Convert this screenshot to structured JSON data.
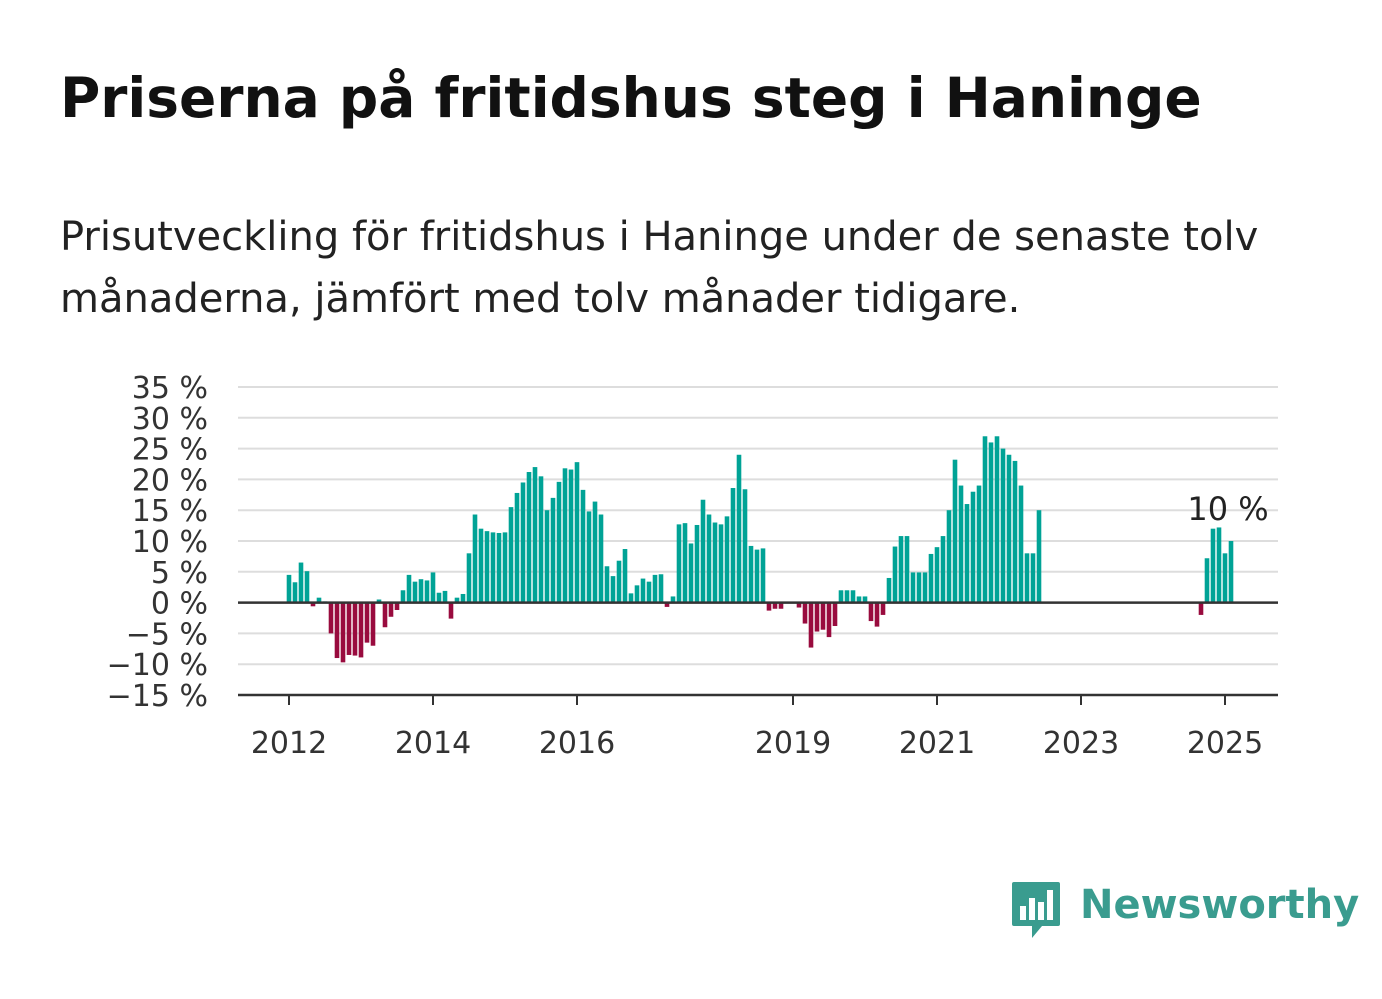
{
  "title": "Priserna på fritidshus steg i Haninge",
  "subtitle": "Prisutveckling för fritidshus i Haninge under de senaste tolv månaderna, jämfört med tolv månader tidigare.",
  "brand": {
    "name": "Newsworthy",
    "color": "#3a9c8f",
    "icon": "bar-chart-speech-bubble-icon"
  },
  "colors": {
    "positive": "#00a396",
    "negative": "#990b3e",
    "grid": "#dddddd",
    "axis": "#333333"
  },
  "chart_data": {
    "type": "bar",
    "x_axis": "time (monthly)",
    "ylim": [
      -15,
      35
    ],
    "yticks": [
      -15,
      -10,
      -5,
      0,
      5,
      10,
      15,
      20,
      25,
      30,
      35
    ],
    "ytick_labels": [
      "−15 %",
      "−10 %",
      "−5 %",
      "0 %",
      "5 %",
      "10 %",
      "15 %",
      "20 %",
      "25 %",
      "30 %",
      "35 %"
    ],
    "xticks": [
      "2012",
      "2014",
      "2016",
      "2019",
      "2021",
      "2023",
      "2025"
    ],
    "grid": true,
    "annotation": "10 %",
    "series": [
      {
        "values": [
          [
            "2012-01",
            4.5
          ],
          [
            "2012-02",
            3.3
          ],
          [
            "2012-03",
            6.5
          ],
          [
            "2012-04",
            5.1
          ],
          [
            "2012-05",
            -0.6
          ],
          [
            "2012-06",
            0.8
          ],
          [
            "2012-07",
            0.2
          ],
          [
            "2012-08",
            -5.0
          ],
          [
            "2012-09",
            -9.0
          ],
          [
            "2012-10",
            -9.7
          ],
          [
            "2012-11",
            -8.5
          ],
          [
            "2012-12",
            -8.6
          ],
          [
            "2013-01",
            -8.9
          ],
          [
            "2013-02",
            -6.5
          ],
          [
            "2013-03",
            -7.0
          ],
          [
            "2013-04",
            0.5
          ],
          [
            "2013-05",
            -4.0
          ],
          [
            "2013-06",
            -2.3
          ],
          [
            "2013-07",
            -1.2
          ],
          [
            "2013-08",
            2.0
          ],
          [
            "2013-09",
            4.5
          ],
          [
            "2013-10",
            3.4
          ],
          [
            "2013-11",
            3.8
          ],
          [
            "2013-12",
            3.6
          ],
          [
            "2014-01",
            4.9
          ],
          [
            "2014-02",
            1.6
          ],
          [
            "2014-03",
            1.9
          ],
          [
            "2014-04",
            -2.6
          ],
          [
            "2014-05",
            0.8
          ],
          [
            "2014-06",
            1.4
          ],
          [
            "2014-07",
            8.0
          ],
          [
            "2014-08",
            14.3
          ],
          [
            "2014-09",
            12.0
          ],
          [
            "2014-10",
            11.6
          ],
          [
            "2014-11",
            11.4
          ],
          [
            "2014-12",
            11.3
          ],
          [
            "2015-01",
            11.4
          ],
          [
            "2015-02",
            15.5
          ],
          [
            "2015-03",
            17.8
          ],
          [
            "2015-04",
            19.5
          ],
          [
            "2015-05",
            21.2
          ],
          [
            "2015-06",
            22.0
          ],
          [
            "2015-07",
            20.5
          ],
          [
            "2015-08",
            15.0
          ],
          [
            "2015-09",
            17.0
          ],
          [
            "2015-10",
            19.6
          ],
          [
            "2015-11",
            21.8
          ],
          [
            "2015-12",
            21.6
          ],
          [
            "2016-01",
            22.8
          ],
          [
            "2016-02",
            18.3
          ],
          [
            "2016-03",
            14.8
          ],
          [
            "2016-04",
            16.4
          ],
          [
            "2016-05",
            14.3
          ],
          [
            "2016-06",
            5.9
          ],
          [
            "2016-07",
            4.3
          ],
          [
            "2016-08",
            6.8
          ],
          [
            "2016-09",
            8.7
          ],
          [
            "2016-10",
            1.5
          ],
          [
            "2016-11",
            2.8
          ],
          [
            "2016-12",
            3.9
          ],
          [
            "2017-01",
            3.4
          ],
          [
            "2017-02",
            4.5
          ],
          [
            "2017-03",
            4.6
          ],
          [
            "2017-04",
            -0.7
          ],
          [
            "2017-05",
            1.0
          ],
          [
            "2017-06",
            12.7
          ],
          [
            "2017-07",
            12.9
          ],
          [
            "2017-08",
            9.6
          ],
          [
            "2017-09",
            12.6
          ],
          [
            "2017-10",
            16.7
          ],
          [
            "2017-11",
            14.3
          ],
          [
            "2017-12",
            13.0
          ],
          [
            "2018-01",
            12.7
          ],
          [
            "2018-02",
            14.0
          ],
          [
            "2018-03",
            18.6
          ],
          [
            "2018-04",
            24.0
          ],
          [
            "2018-05",
            18.4
          ],
          [
            "2018-06",
            9.2
          ],
          [
            "2018-07",
            8.6
          ],
          [
            "2018-08",
            8.8
          ],
          [
            "2018-09",
            -1.3
          ],
          [
            "2018-10",
            -1.0
          ],
          [
            "2018-11",
            -1.0
          ],
          [
            "2018-12",
            null
          ],
          [
            "2019-01",
            null
          ],
          [
            "2019-02",
            -0.8
          ],
          [
            "2019-03",
            -3.4
          ],
          [
            "2019-04",
            -7.3
          ],
          [
            "2019-05",
            -4.7
          ],
          [
            "2019-06",
            -4.4
          ],
          [
            "2019-07",
            -5.6
          ],
          [
            "2019-08",
            -3.8
          ],
          [
            "2019-09",
            2.0
          ],
          [
            "2019-10",
            2.0
          ],
          [
            "2019-11",
            2.0
          ],
          [
            "2019-12",
            1.0
          ],
          [
            "2020-01",
            1.0
          ],
          [
            "2020-02",
            -3.0
          ],
          [
            "2020-03",
            -3.9
          ],
          [
            "2020-04",
            -2.0
          ],
          [
            "2020-05",
            4.0
          ],
          [
            "2020-06",
            9.1
          ],
          [
            "2020-07",
            10.8
          ],
          [
            "2020-08",
            10.8
          ],
          [
            "2020-09",
            4.9
          ],
          [
            "2020-10",
            4.9
          ],
          [
            "2020-11",
            4.9
          ],
          [
            "2020-12",
            7.9
          ],
          [
            "2021-01",
            9.0
          ],
          [
            "2021-02",
            10.8
          ],
          [
            "2021-03",
            15.0
          ],
          [
            "2021-04",
            23.2
          ],
          [
            "2021-05",
            19.0
          ],
          [
            "2021-06",
            16.0
          ],
          [
            "2021-07",
            18.0
          ],
          [
            "2021-08",
            19.0
          ],
          [
            "2021-09",
            27.0
          ],
          [
            "2021-10",
            26.0
          ],
          [
            "2021-11",
            27.0
          ],
          [
            "2021-12",
            25.0
          ],
          [
            "2022-01",
            24.0
          ],
          [
            "2022-02",
            23.0
          ],
          [
            "2022-03",
            19.0
          ],
          [
            "2022-04",
            8.0
          ],
          [
            "2022-05",
            8.0
          ],
          [
            "2022-06",
            15.0
          ],
          [
            "2024-09",
            -2.0
          ],
          [
            "2024-10",
            7.2
          ],
          [
            "2024-11",
            12.0
          ],
          [
            "2024-12",
            12.2
          ],
          [
            "2025-01",
            8.0
          ],
          [
            "2025-02",
            10.0
          ]
        ]
      }
    ]
  }
}
